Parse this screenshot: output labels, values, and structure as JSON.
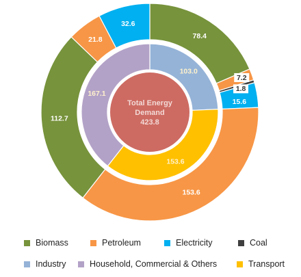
{
  "chart_data": {
    "type": "doughnut",
    "title": "",
    "center_label": [
      "Total Energy",
      "Demand",
      "423.8"
    ],
    "outer_ring": [
      {
        "name": "Biomass",
        "value": 78.4,
        "label": "78.4",
        "color": "#77933c"
      },
      {
        "name": "Petroleum",
        "value": 7.2,
        "label": "7.2",
        "color": "#f79646"
      },
      {
        "name": "Coal",
        "value": 1.8,
        "label": "1.8",
        "color": "#404040"
      },
      {
        "name": "Electricity",
        "value": 15.6,
        "label": "15.6",
        "color": "#00b0f0"
      },
      {
        "name": "Petroleum",
        "value": 153.6,
        "label": "153.6",
        "color": "#f79646"
      },
      {
        "name": "Biomass",
        "value": 112.7,
        "label": "112.7",
        "color": "#77933c"
      },
      {
        "name": "Petroleum",
        "value": 21.8,
        "label": "21.8",
        "color": "#f79646"
      },
      {
        "name": "Electricity",
        "value": 32.6,
        "label": "32.6",
        "color": "#00b0f0"
      }
    ],
    "inner_ring": [
      {
        "name": "Industry",
        "value": 103.0,
        "label": "103.0",
        "color": "#95b3d7"
      },
      {
        "name": "Transport",
        "value": 153.6,
        "label": "153.6",
        "color": "#ffc000"
      },
      {
        "name": "Household, Commercial & Others",
        "value": 167.1,
        "label": "167.1",
        "color": "#b3a2c7"
      }
    ],
    "legend_position": "bottom",
    "legend": [
      [
        {
          "label": "Biomass",
          "color": "#77933c"
        },
        {
          "label": "Petroleum",
          "color": "#f79646"
        },
        {
          "label": "Electricity",
          "color": "#00b0f0"
        },
        {
          "label": "Coal",
          "color": "#404040"
        }
      ],
      [
        {
          "label": "Industry",
          "color": "#95b3d7"
        },
        {
          "label": "Household, Commercial & Others",
          "color": "#b3a2c7"
        },
        {
          "label": "Transport",
          "color": "#ffc000"
        }
      ]
    ],
    "colors": {
      "center": "#cd6b62",
      "separator": "#ffffff"
    }
  }
}
